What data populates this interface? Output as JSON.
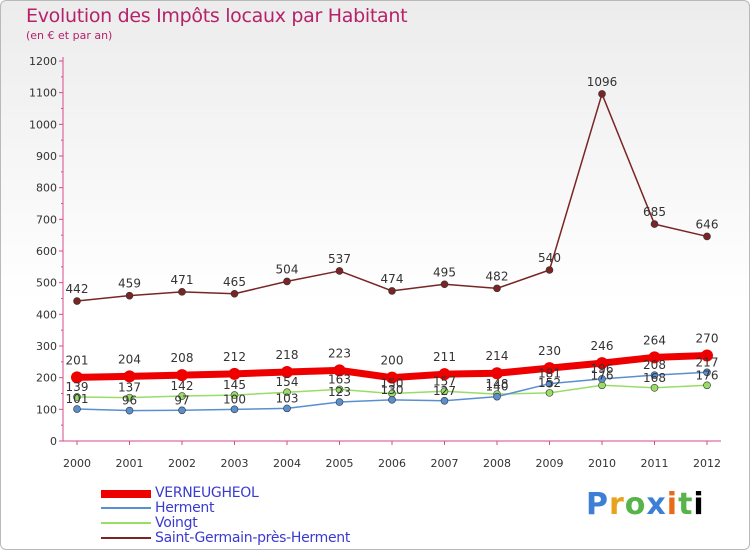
{
  "title": "Evolution des Impôts locaux par Habitant",
  "subtitle": "(en € et par an)",
  "brand": "Proxiti",
  "chart_data": {
    "type": "line",
    "title": "Evolution des Impôts locaux par Habitant",
    "subtitle": "(en € et par an)",
    "xlabel": "",
    "ylabel": "",
    "ylim": [
      0,
      1200
    ],
    "yticks": [
      0,
      100,
      200,
      300,
      400,
      500,
      600,
      700,
      800,
      900,
      1000,
      1100,
      1200
    ],
    "categories": [
      "2000",
      "2001",
      "2002",
      "2003",
      "2004",
      "2005",
      "2006",
      "2007",
      "2008",
      "2009",
      "2010",
      "2011",
      "2012"
    ],
    "grid": false,
    "legend_position": "bottom-left",
    "series": [
      {
        "name": "VERNEUGHEOL",
        "color": "#ee0000",
        "values": [
          201,
          204,
          208,
          212,
          218,
          223,
          200,
          211,
          214,
          230,
          246,
          264,
          270
        ],
        "labels": [
          "201",
          "204",
          "208",
          "212",
          "218",
          "223",
          "200",
          "211",
          "214",
          "230",
          "246",
          "264",
          "270"
        ]
      },
      {
        "name": "Herment",
        "color": "#5a8fcf",
        "values": [
          101,
          96,
          97,
          100,
          103,
          123,
          130,
          127,
          140,
          181,
          196,
          208,
          217
        ],
        "labels": [
          "101",
          "96",
          "97",
          "100",
          "103",
          "123",
          "130",
          "127",
          "140",
          "181",
          "196",
          "208",
          "217"
        ]
      },
      {
        "name": "Voingt",
        "color": "#99dd66",
        "values": [
          139,
          137,
          142,
          145,
          154,
          163,
          150,
          157,
          148,
          152,
          176,
          168,
          176
        ],
        "labels": [
          "139",
          "137",
          "142",
          "145",
          "154",
          "163",
          "150",
          "157",
          "148",
          "152",
          "176",
          "168",
          "176"
        ]
      },
      {
        "name": "Saint-Germain-près-Herment",
        "color": "#7a2525",
        "values": [
          442,
          459,
          471,
          465,
          504,
          537,
          474,
          495,
          482,
          540,
          1096,
          685,
          646
        ],
        "labels": [
          "442",
          "459",
          "471",
          "465",
          "504",
          "537",
          "474",
          "495",
          "482",
          "540",
          "1096",
          "685",
          "646"
        ]
      }
    ]
  }
}
